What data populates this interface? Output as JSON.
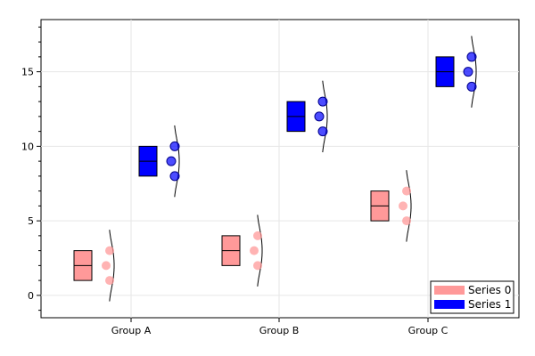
{
  "chart_data": {
    "type": "box_violin_scatter",
    "title": "",
    "xlabel": "",
    "ylabel": "",
    "categories": [
      "Group A",
      "Group B",
      "Group C"
    ],
    "ylim": [
      -1.5,
      18.5
    ],
    "yticks": [
      0,
      5,
      10,
      15
    ],
    "grid": true,
    "legend_position": "bottom-right",
    "series": [
      {
        "name": "Series 0",
        "color": "#ff9999",
        "points": [
          [
            1,
            2,
            3
          ],
          [
            2,
            3,
            4
          ],
          [
            5,
            6,
            7
          ]
        ],
        "boxes": [
          {
            "q1": 1,
            "median": 2,
            "q3": 3
          },
          {
            "q1": 2,
            "median": 3,
            "q3": 4
          },
          {
            "q1": 5,
            "median": 6,
            "q3": 7
          }
        ]
      },
      {
        "name": "Series 1",
        "color": "#0000ff",
        "points": [
          [
            8,
            9,
            10
          ],
          [
            11,
            12,
            13
          ],
          [
            14,
            15,
            16
          ]
        ],
        "boxes": [
          {
            "q1": 8,
            "median": 9,
            "q3": 10
          },
          {
            "q1": 11,
            "median": 12,
            "q3": 13
          },
          {
            "q1": 14,
            "median": 15,
            "q3": 16
          }
        ]
      }
    ]
  }
}
